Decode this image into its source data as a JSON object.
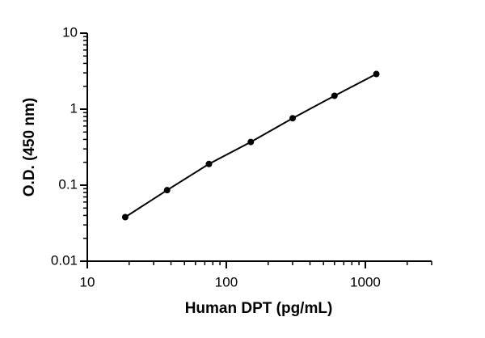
{
  "chart_data": {
    "type": "scatter-line",
    "x_label": "Human DPT (pg/mL)",
    "y_label": "O.D. (450 nm)",
    "x": [
      18.75,
      37.5,
      75,
      150,
      300,
      600,
      1200
    ],
    "series": [
      {
        "name": "Human DPT",
        "color": "#000000",
        "values": [
          0.038,
          0.086,
          0.19,
          0.37,
          0.76,
          1.5,
          2.9
        ]
      }
    ],
    "xlim": [
      10,
      3000
    ],
    "ylim": [
      0.01,
      10
    ],
    "xticks": [
      10,
      100,
      1000
    ],
    "yticks": [
      0.01,
      0.1,
      1,
      10
    ],
    "xlog": true,
    "ylog": true,
    "minor_ticks": true
  }
}
